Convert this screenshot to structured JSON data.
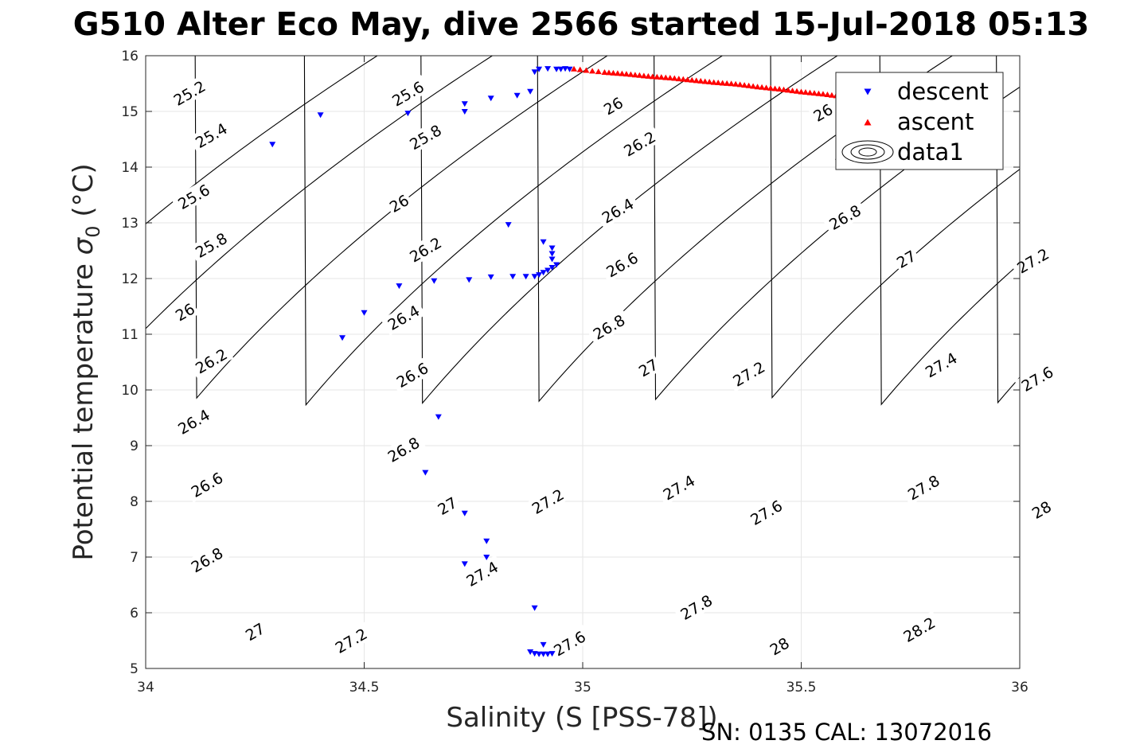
{
  "title": "G510 Alter Eco May, dive 2566 started 15-Jul-2018 05:13",
  "footer": "SN: 0135  CAL: 13072016",
  "chart_data": {
    "type": "scatter",
    "xlabel": "Salinity (S [PSS-78])",
    "ylabel_main": "Potential temperature ",
    "ylabel_symbol": "σ",
    "ylabel_sub": "0",
    "ylabel_unit": " (°C)",
    "xlim": [
      34,
      36
    ],
    "ylim": [
      5,
      16
    ],
    "xticks": [
      "34",
      "34.5",
      "35",
      "35.5",
      "36"
    ],
    "yticks": [
      "5",
      "6",
      "7",
      "8",
      "9",
      "10",
      "11",
      "12",
      "13",
      "14",
      "15",
      "16"
    ],
    "grid": true,
    "legend_position": "top-right",
    "series": [
      {
        "name": "descent",
        "marker": "triangle-down",
        "color": "#0000ff",
        "points": [
          [
            34.29,
            14.41
          ],
          [
            34.4,
            14.94
          ],
          [
            34.45,
            10.94
          ],
          [
            34.5,
            11.39
          ],
          [
            34.58,
            11.87
          ],
          [
            34.6,
            14.97
          ],
          [
            34.66,
            11.96
          ],
          [
            34.67,
            9.52
          ],
          [
            34.64,
            8.52
          ],
          [
            34.73,
            15.0
          ],
          [
            34.73,
            15.14
          ],
          [
            34.73,
            7.79
          ],
          [
            34.74,
            11.98
          ],
          [
            34.73,
            6.88
          ],
          [
            34.78,
            7.0
          ],
          [
            34.78,
            7.29
          ],
          [
            34.79,
            12.03
          ],
          [
            34.79,
            15.24
          ],
          [
            34.83,
            12.97
          ],
          [
            34.84,
            12.04
          ],
          [
            34.85,
            15.29
          ],
          [
            34.87,
            12.04
          ],
          [
            34.88,
            15.36
          ],
          [
            34.89,
            12.04
          ],
          [
            34.89,
            15.71
          ],
          [
            34.9,
            15.76
          ],
          [
            34.92,
            15.77
          ],
          [
            34.94,
            15.76
          ],
          [
            34.95,
            15.76
          ],
          [
            34.96,
            15.77
          ],
          [
            34.97,
            15.76
          ],
          [
            34.9,
            12.07
          ],
          [
            34.91,
            12.11
          ],
          [
            34.92,
            12.15
          ],
          [
            34.93,
            12.2
          ],
          [
            34.94,
            12.25
          ],
          [
            34.93,
            12.35
          ],
          [
            34.93,
            12.45
          ],
          [
            34.93,
            12.55
          ],
          [
            34.91,
            12.66
          ],
          [
            34.89,
            6.09
          ],
          [
            34.91,
            5.43
          ],
          [
            34.88,
            5.3
          ],
          [
            34.89,
            5.27
          ],
          [
            34.9,
            5.26
          ],
          [
            34.91,
            5.26
          ],
          [
            34.92,
            5.26
          ],
          [
            34.93,
            5.27
          ]
        ]
      },
      {
        "name": "ascent",
        "marker": "triangle-up",
        "color": "#ff0000",
        "points": [
          [
            34.98,
            15.76
          ],
          [
            35.05,
            15.7
          ],
          [
            35.1,
            15.67
          ],
          [
            35.15,
            15.63
          ],
          [
            35.2,
            15.6
          ],
          [
            35.25,
            15.56
          ],
          [
            35.3,
            15.52
          ],
          [
            35.35,
            15.49
          ],
          [
            35.4,
            15.44
          ],
          [
            35.45,
            15.4
          ],
          [
            35.5,
            15.35
          ],
          [
            35.55,
            15.31
          ],
          [
            35.6,
            15.26
          ],
          [
            35.65,
            15.2
          ],
          [
            35.7,
            15.13
          ]
        ]
      },
      {
        "name": "data1",
        "type": "contour",
        "color": "#000000"
      }
    ],
    "contour_levels": [
      "25.2",
      "25.4",
      "25.6",
      "25.8",
      "26",
      "26.2",
      "26.4",
      "26.6",
      "26.8",
      "27",
      "27.2",
      "27.4",
      "27.6",
      "27.8",
      "28",
      "28.2"
    ],
    "contour_labels": [
      {
        "text": "25.2",
        "s": 34.1,
        "t": 15.33
      },
      {
        "text": "25.4",
        "s": 34.15,
        "t": 14.57
      },
      {
        "text": "25.6",
        "s": 34.11,
        "t": 13.47
      },
      {
        "text": "25.8",
        "s": 34.15,
        "t": 12.6
      },
      {
        "text": "26",
        "s": 34.09,
        "t": 11.4
      },
      {
        "text": "26.2",
        "s": 34.15,
        "t": 10.52
      },
      {
        "text": "26.4",
        "s": 34.11,
        "t": 9.43
      },
      {
        "text": "26.6",
        "s": 34.14,
        "t": 8.3
      },
      {
        "text": "26.8",
        "s": 34.14,
        "t": 6.95
      },
      {
        "text": "27",
        "s": 34.25,
        "t": 5.66
      },
      {
        "text": "25.6",
        "s": 34.6,
        "t": 15.32
      },
      {
        "text": "25.8",
        "s": 34.64,
        "t": 14.54
      },
      {
        "text": "26",
        "s": 34.58,
        "t": 13.35
      },
      {
        "text": "26.2",
        "s": 34.64,
        "t": 12.52
      },
      {
        "text": "26.4",
        "s": 34.59,
        "t": 11.3
      },
      {
        "text": "26.6",
        "s": 34.61,
        "t": 10.27
      },
      {
        "text": "26.8",
        "s": 34.59,
        "t": 8.93
      },
      {
        "text": "27",
        "s": 34.69,
        "t": 7.92
      },
      {
        "text": "27.2",
        "s": 34.47,
        "t": 5.5
      },
      {
        "text": "27.4",
        "s": 34.77,
        "t": 6.7
      },
      {
        "text": "27.6",
        "s": 34.97,
        "t": 5.45
      },
      {
        "text": "27.2",
        "s": 34.92,
        "t": 8.0
      },
      {
        "text": "26",
        "s": 35.07,
        "t": 15.1
      },
      {
        "text": "26.2",
        "s": 35.13,
        "t": 14.42
      },
      {
        "text": "26.4",
        "s": 35.08,
        "t": 13.22
      },
      {
        "text": "26.6",
        "s": 35.09,
        "t": 12.25
      },
      {
        "text": "26.8",
        "s": 35.06,
        "t": 11.13
      },
      {
        "text": "27",
        "s": 35.15,
        "t": 10.4
      },
      {
        "text": "27.4",
        "s": 35.22,
        "t": 8.25
      },
      {
        "text": "27.8",
        "s": 35.26,
        "t": 6.1
      },
      {
        "text": "26",
        "s": 35.55,
        "t": 14.98
      },
      {
        "text": "26",
        "s": 35.6,
        "t": 14.14
      },
      {
        "text": "26.8",
        "s": 35.6,
        "t": 13.1
      },
      {
        "text": "27",
        "s": 35.74,
        "t": 12.35
      },
      {
        "text": "27.2",
        "s": 35.38,
        "t": 10.29
      },
      {
        "text": "27.6",
        "s": 35.42,
        "t": 7.8
      },
      {
        "text": "28",
        "s": 35.45,
        "t": 5.4
      },
      {
        "text": "27.2",
        "s": 36.03,
        "t": 12.32
      },
      {
        "text": "27.4",
        "s": 35.82,
        "t": 10.45
      },
      {
        "text": "27.8",
        "s": 35.78,
        "t": 8.25
      },
      {
        "text": "28.2",
        "s": 35.77,
        "t": 5.7
      },
      {
        "text": "27.6",
        "s": 36.04,
        "t": 10.2
      },
      {
        "text": "28",
        "s": 36.05,
        "t": 7.85
      }
    ]
  }
}
